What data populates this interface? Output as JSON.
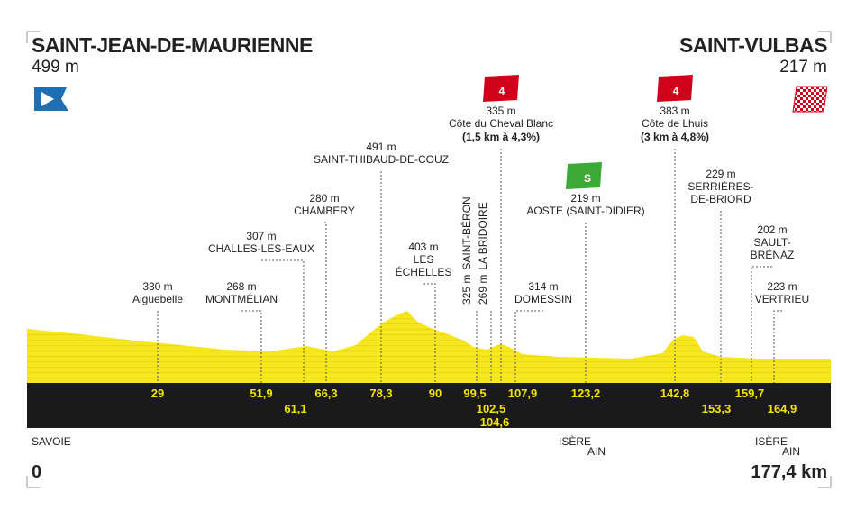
{
  "start": {
    "name": "SAINT-JEAN-DE-MAURIENNE",
    "altitude": "499 m",
    "km": "0"
  },
  "finish": {
    "name": "SAINT-VULBAS",
    "altitude": "217 m",
    "km": "177,4 km"
  },
  "waypoints": [
    {
      "altitude": "330 m",
      "name": [
        "Aiguebelle"
      ],
      "km": "29"
    },
    {
      "altitude": "268 m",
      "name": [
        "MONTMÉLIAN"
      ],
      "km": "51,9"
    },
    {
      "altitude": "307 m",
      "name": [
        "CHALLES-LES-EAUX"
      ],
      "km": "61,1"
    },
    {
      "altitude": "280 m",
      "name": [
        "CHAMBERY"
      ],
      "km": "66,3"
    },
    {
      "altitude": "491 m",
      "name": [
        "SAINT-THIBAUD-DE-COUZ"
      ],
      "km": "78,3"
    },
    {
      "altitude": "403 m",
      "name": [
        "LES",
        "ÉCHELLES"
      ],
      "km": "90"
    },
    {
      "altitude": "325 m",
      "name": [
        "SAINT-BÉRON"
      ],
      "km": "99,5"
    },
    {
      "altitude": "269 m",
      "name": [
        "LA BRIDOIRE"
      ],
      "km": "102,5"
    },
    {
      "altitude": "335 m",
      "name": [
        "Côte du Cheval Blanc"
      ],
      "detail": "(1,5 km à 4,3%)",
      "category": "4",
      "km": "104,6"
    },
    {
      "altitude": "314 m",
      "name": [
        "DOMESSIN"
      ],
      "km": "107,9"
    },
    {
      "altitude": "219 m",
      "name": [
        "AOSTE (SAINT-DIDIER)"
      ],
      "sprint": "S",
      "km": "123,2"
    },
    {
      "altitude": "383 m",
      "name": [
        "Côte de Lhuis"
      ],
      "detail": "(3 km à 4,8%)",
      "category": "4",
      "km": "142,8"
    },
    {
      "altitude": "229 m",
      "name": [
        "SERRIÈRES-",
        "DE-BRIORD"
      ],
      "km": "153,3"
    },
    {
      "altitude": "202 m",
      "name": [
        "SAULT-",
        "BRÉNAZ"
      ],
      "km": "159,7"
    },
    {
      "altitude": "223 m",
      "name": [
        "VERTRIEU"
      ],
      "km": "164,9"
    }
  ],
  "region_labels": [
    "SAVOIE",
    "ISÈRE",
    "AIN",
    "ISÈRE",
    "AIN"
  ]
}
